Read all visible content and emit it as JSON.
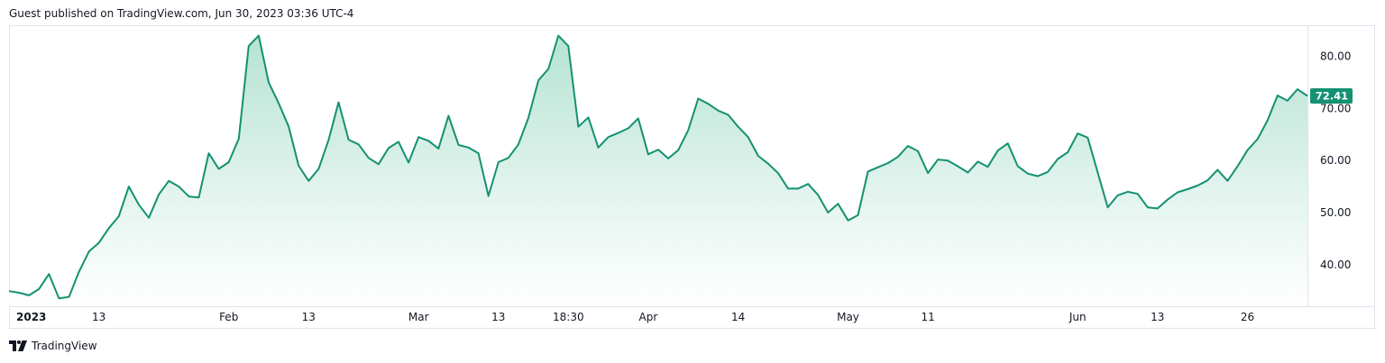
{
  "header": {
    "published": "Guest published on TradingView.com, Jun 30, 2023 03:36 UTC-4"
  },
  "branding": {
    "name": "TradingView",
    "logo": "tradingview-logo-icon"
  },
  "colors": {
    "line": "#149172",
    "area_top": "#b5e3d2",
    "area_bottom": "#ffffff",
    "label_bg": "#149172",
    "axis_border": "#e0e3eb"
  },
  "chart_data": {
    "type": "area",
    "ylim": [
      32,
      86
    ],
    "y_ticks": [
      "80.00",
      "70.00",
      "60.00",
      "50.00",
      "40.00"
    ],
    "y_tick_values": [
      80,
      70,
      60,
      50,
      40
    ],
    "last_price": {
      "label": "72.41",
      "value": 72.41
    },
    "x_ticks": [
      {
        "label": "2023",
        "i": 0,
        "bold": true
      },
      {
        "label": "13",
        "i": 9
      },
      {
        "label": "Feb",
        "i": 22
      },
      {
        "label": "13",
        "i": 30
      },
      {
        "label": "Mar",
        "i": 41
      },
      {
        "label": "13",
        "i": 49
      },
      {
        "label": "18:30",
        "i": 56
      },
      {
        "label": "Apr",
        "i": 64
      },
      {
        "label": "14",
        "i": 73
      },
      {
        "label": "May",
        "i": 84
      },
      {
        "label": "11",
        "i": 92
      },
      {
        "label": "Jun",
        "i": 107
      },
      {
        "label": "13",
        "i": 115
      },
      {
        "label": "26",
        "i": 124
      }
    ],
    "values": [
      34.9,
      34.6,
      34.1,
      35.3,
      38.2,
      33.5,
      33.8,
      38.6,
      42.5,
      44.2,
      47.0,
      49.3,
      55.0,
      51.5,
      49.0,
      53.5,
      56.1,
      55.0,
      53.1,
      52.9,
      61.4,
      58.4,
      59.7,
      64.2,
      82.0,
      84.0,
      75.0,
      71.0,
      66.5,
      59.0,
      56.1,
      58.4,
      64.0,
      71.2,
      64.0,
      63.1,
      60.5,
      59.3,
      62.4,
      63.6,
      59.6,
      64.5,
      63.8,
      62.3,
      68.6,
      63.0,
      62.5,
      61.4,
      53.2,
      59.7,
      60.5,
      63.1,
      68.2,
      75.4,
      77.6,
      84.0,
      82.0,
      66.5,
      68.3,
      62.5,
      64.5,
      65.3,
      66.2,
      68.1,
      61.2,
      62.1,
      60.4,
      62.0,
      65.8,
      71.9,
      70.9,
      69.6,
      68.8,
      66.5,
      64.5,
      60.9,
      59.4,
      57.6,
      54.6,
      54.6,
      55.5,
      53.4,
      50.0,
      51.7,
      48.5,
      49.5,
      57.9,
      58.7,
      59.5,
      60.7,
      62.8,
      61.8,
      57.6,
      60.2,
      60.0,
      58.9,
      57.7,
      59.8,
      58.8,
      61.9,
      63.3,
      58.9,
      57.5,
      57.0,
      57.8,
      60.3,
      61.6,
      65.2,
      64.4,
      57.7,
      51.0,
      53.3,
      54.0,
      53.6,
      51.0,
      50.8,
      52.5,
      53.9,
      54.5,
      55.2,
      56.2,
      58.2,
      56.1,
      58.9,
      62.0,
      64.1,
      67.7,
      72.5,
      71.5,
      73.7,
      72.41
    ]
  }
}
